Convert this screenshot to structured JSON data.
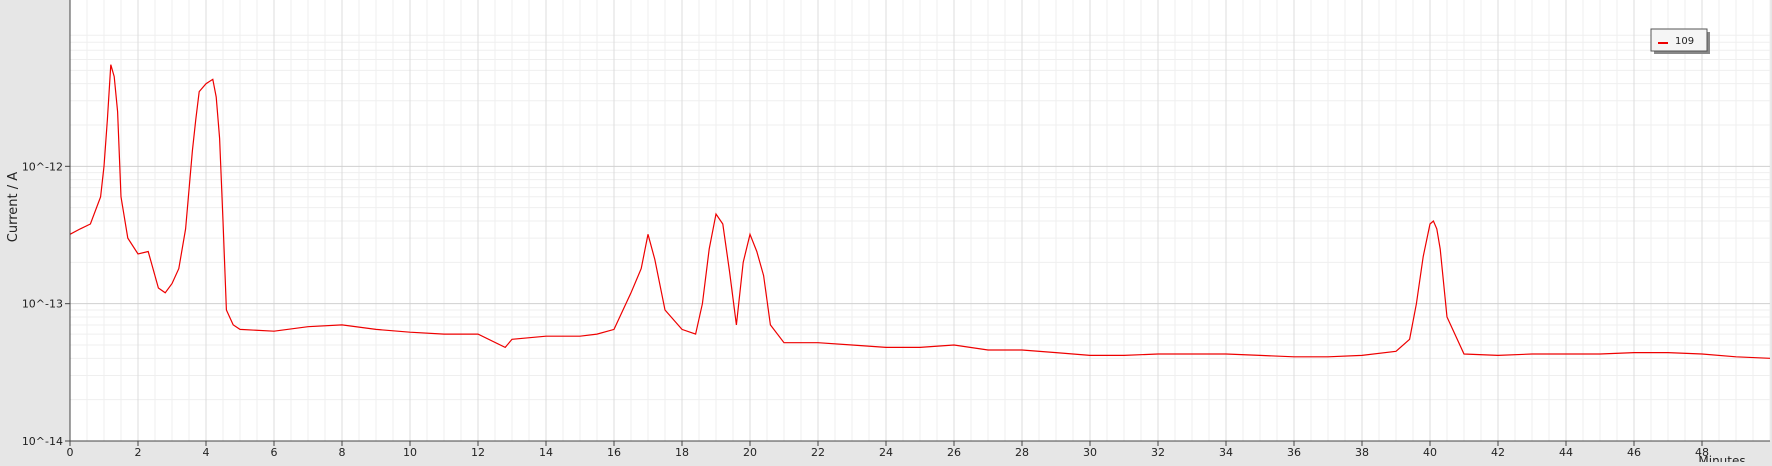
{
  "chart_data": {
    "type": "line",
    "title": "",
    "xlabel": "Minutes",
    "ylabel": "Current / A",
    "yscale": "log",
    "xlim": [
      0,
      50
    ],
    "ylim": [
      1e-14,
      1e-11
    ],
    "grid": true,
    "legend_position": "top-right",
    "x_ticks": [
      {
        "value": 0,
        "label": "0"
      },
      {
        "value": 2,
        "label": "2"
      },
      {
        "value": 4,
        "label": "4"
      },
      {
        "value": 6,
        "label": "6"
      },
      {
        "value": 8,
        "label": "8"
      },
      {
        "value": 10,
        "label": "10"
      },
      {
        "value": 12,
        "label": "12"
      },
      {
        "value": 14,
        "label": "14"
      },
      {
        "value": 16,
        "label": "16"
      },
      {
        "value": 18,
        "label": "18"
      },
      {
        "value": 20,
        "label": "20"
      },
      {
        "value": 22,
        "label": "22"
      },
      {
        "value": 24,
        "label": "24"
      },
      {
        "value": 26,
        "label": "26"
      },
      {
        "value": 28,
        "label": "28"
      },
      {
        "value": 30,
        "label": "30"
      },
      {
        "value": 32,
        "label": "32"
      },
      {
        "value": 34,
        "label": "34"
      },
      {
        "value": 36,
        "label": "36"
      },
      {
        "value": 38,
        "label": "38"
      },
      {
        "value": 40,
        "label": "40"
      },
      {
        "value": 42,
        "label": "42"
      },
      {
        "value": 44,
        "label": "44"
      },
      {
        "value": 46,
        "label": "46"
      },
      {
        "value": 48,
        "label": "48"
      }
    ],
    "y_ticks": [
      {
        "value": 1e-14,
        "label": "10^-14"
      },
      {
        "value": 1e-13,
        "label": "10^-13"
      },
      {
        "value": 1e-12,
        "label": "10^-12"
      }
    ],
    "series": [
      {
        "name": "109",
        "color": "#ee0000",
        "x": [
          0,
          0.3,
          0.6,
          0.9,
          1.0,
          1.1,
          1.2,
          1.3,
          1.4,
          1.5,
          1.7,
          2.0,
          2.3,
          2.6,
          2.8,
          3.0,
          3.2,
          3.4,
          3.6,
          3.7,
          3.8,
          4.0,
          4.2,
          4.3,
          4.4,
          4.5,
          4.6,
          4.8,
          5.0,
          6.0,
          7.0,
          8.0,
          9.0,
          10.0,
          11.0,
          12.0,
          12.8,
          13.0,
          14.0,
          15.0,
          15.5,
          16.0,
          16.5,
          16.8,
          17.0,
          17.2,
          17.5,
          18.0,
          18.4,
          18.6,
          18.8,
          19.0,
          19.2,
          19.4,
          19.6,
          19.8,
          20.0,
          20.2,
          20.4,
          20.6,
          21.0,
          22.0,
          23.0,
          24.0,
          25.0,
          26.0,
          27.0,
          28.0,
          29.0,
          30.0,
          31.0,
          32.0,
          33.0,
          34.0,
          35.0,
          36.0,
          37.0,
          38.0,
          39.0,
          39.4,
          39.6,
          39.8,
          40.0,
          40.1,
          40.2,
          40.3,
          40.5,
          41.0,
          42.0,
          43.0,
          44.0,
          45.0,
          46.0,
          47.0,
          48.0,
          49.0,
          50.0
        ],
        "y": [
          3.2e-13,
          3.5e-13,
          3.8e-13,
          6e-13,
          1e-12,
          2.2e-12,
          5.5e-12,
          4.5e-12,
          2.5e-12,
          6e-13,
          3e-13,
          2.3e-13,
          2.4e-13,
          1.3e-13,
          1.2e-13,
          1.4e-13,
          1.8e-13,
          3.5e-13,
          1.3e-12,
          2.2e-12,
          3.5e-12,
          4e-12,
          4.3e-12,
          3.2e-12,
          1.6e-12,
          4e-13,
          9e-14,
          7e-14,
          6.5e-14,
          6.3e-14,
          6.8e-14,
          7e-14,
          6.5e-14,
          6.2e-14,
          6e-14,
          6e-14,
          4.8e-14,
          5.5e-14,
          5.8e-14,
          5.8e-14,
          6e-14,
          6.5e-14,
          1.2e-13,
          1.8e-13,
          3.2e-13,
          2.1e-13,
          9e-14,
          6.5e-14,
          6e-14,
          1e-13,
          2.5e-13,
          4.5e-13,
          3.8e-13,
          1.7e-13,
          7e-14,
          2e-13,
          3.2e-13,
          2.4e-13,
          1.6e-13,
          7e-14,
          5.2e-14,
          5.2e-14,
          5e-14,
          4.8e-14,
          4.8e-14,
          5e-14,
          4.6e-14,
          4.6e-14,
          4.4e-14,
          4.2e-14,
          4.2e-14,
          4.3e-14,
          4.3e-14,
          4.3e-14,
          4.2e-14,
          4.1e-14,
          4.1e-14,
          4.2e-14,
          4.5e-14,
          5.5e-14,
          1e-13,
          2.2e-13,
          3.8e-13,
          4e-13,
          3.5e-13,
          2.5e-13,
          8e-14,
          4.3e-14,
          4.2e-14,
          4.3e-14,
          4.3e-14,
          4.3e-14,
          4.4e-14,
          4.4e-14,
          4.3e-14,
          4.1e-14,
          4e-14
        ]
      }
    ]
  }
}
